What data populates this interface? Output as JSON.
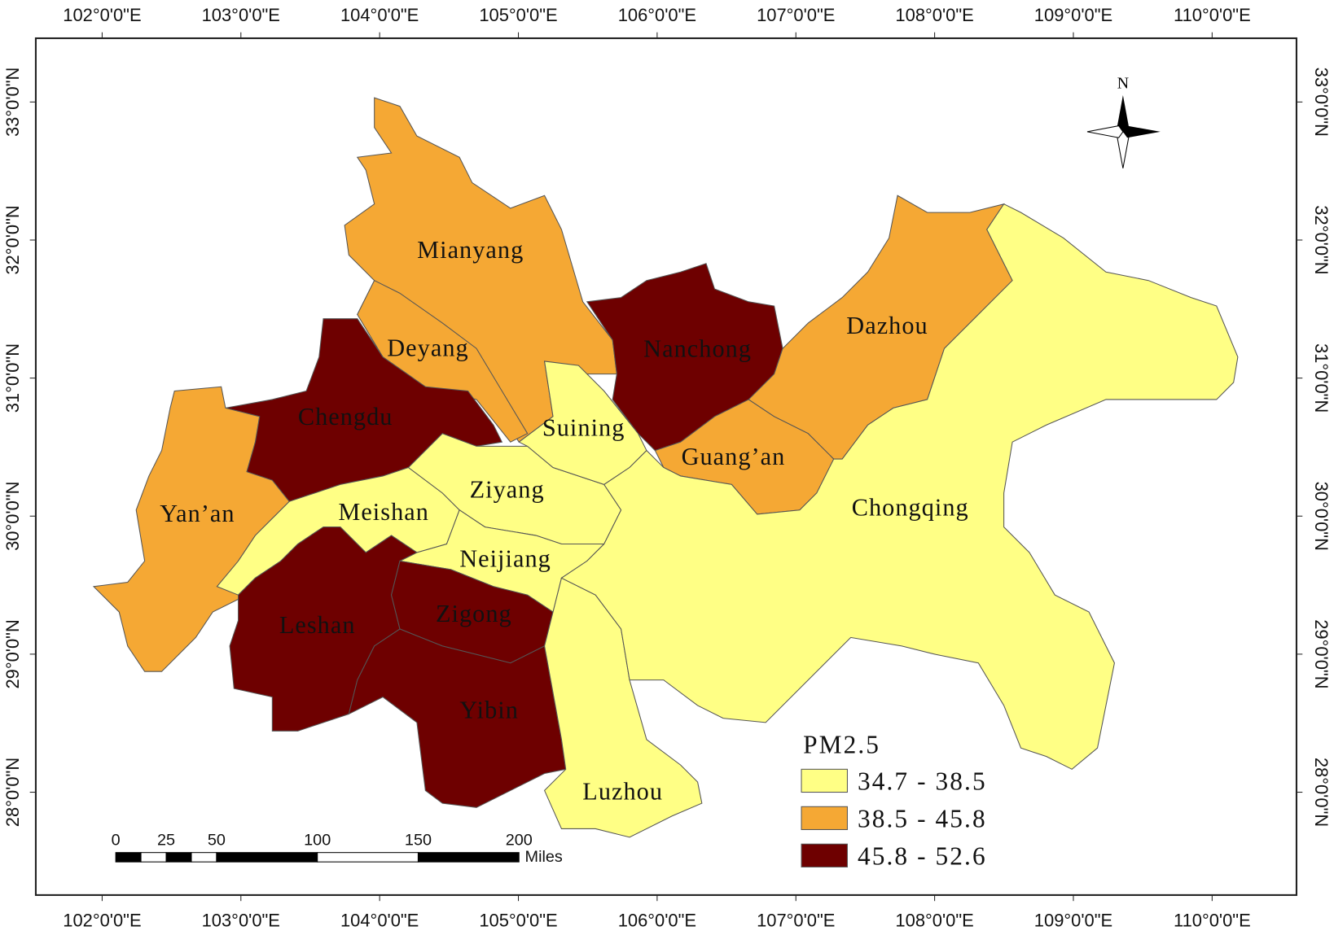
{
  "map": {
    "longitude_labels": [
      "102°0'0\"E",
      "103°0'0\"E",
      "104°0'0\"E",
      "105°0'0\"E",
      "106°0'0\"E",
      "107°0'0\"E",
      "108°0'0\"E",
      "109°0'0\"E",
      "110°0'0\"E"
    ],
    "latitude_labels": [
      "33°0'0\"N",
      "32°0'0\"N",
      "31°0'0\"N",
      "30°0'0\"N",
      "29°0'0\"N",
      "28°0'0\"N"
    ],
    "regions": [
      {
        "label": "Mianyang",
        "color": "#f5a834"
      },
      {
        "label": "Deyang",
        "color": "#f5a834"
      },
      {
        "label": "Chengdu",
        "color": "#6e0000"
      },
      {
        "label": "Yan’an",
        "color": "#f5a834"
      },
      {
        "label": "Meishan",
        "color": "#ffff85"
      },
      {
        "label": "Ziyang",
        "color": "#ffff85"
      },
      {
        "label": "Suining",
        "color": "#ffff85"
      },
      {
        "label": "Neijiang",
        "color": "#ffff85"
      },
      {
        "label": "Leshan",
        "color": "#6e0000"
      },
      {
        "label": "Zigong",
        "color": "#6e0000"
      },
      {
        "label": "Yibin",
        "color": "#6e0000"
      },
      {
        "label": "Luzhou",
        "color": "#ffff85"
      },
      {
        "label": "Nanchong",
        "color": "#6e0000"
      },
      {
        "label": "Guang’an",
        "color": "#f5a834"
      },
      {
        "label": "Dazhou",
        "color": "#f5a834"
      },
      {
        "label": "Chongqing",
        "color": "#ffff85"
      }
    ],
    "north_label": "N",
    "legend": {
      "title": "PM2.5",
      "items": [
        {
          "label": "34.7 - 38.5",
          "color": "#ffff85"
        },
        {
          "label": "38.5 - 45.8",
          "color": "#f5a834"
        },
        {
          "label": "45.8 - 52.6",
          "color": "#6e0000"
        }
      ]
    },
    "scale_bar": {
      "ticks": [
        0,
        25,
        50,
        100,
        150,
        200
      ],
      "unit": "Miles"
    }
  }
}
